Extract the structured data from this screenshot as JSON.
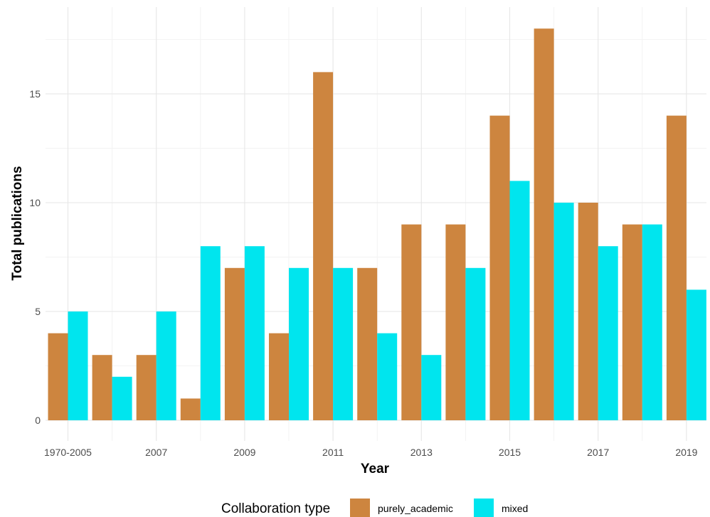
{
  "chart_data": {
    "type": "bar",
    "xlabel": "Year",
    "ylabel": "Total publications",
    "categories": [
      "1970-2005",
      "2006",
      "2007",
      "2008",
      "2009",
      "2010",
      "2011",
      "2012",
      "2013",
      "2014",
      "2015",
      "2016",
      "2017",
      "2018",
      "2019"
    ],
    "x_tick_labels": [
      "1970-2005",
      "2007",
      "2009",
      "2011",
      "2013",
      "2015",
      "2017",
      "2019"
    ],
    "y_ticks": [
      0,
      5,
      10,
      15
    ],
    "ylim": [
      0,
      19
    ],
    "grid": true,
    "series": [
      {
        "name": "purely_academic",
        "color": "#CD853F",
        "values": [
          4,
          3,
          3,
          1,
          7,
          4,
          16,
          7,
          9,
          9,
          14,
          18,
          10,
          9,
          14
        ]
      },
      {
        "name": "mixed",
        "color": "#00E5EE",
        "values": [
          5,
          2,
          5,
          8,
          8,
          7,
          7,
          4,
          3,
          7,
          11,
          10,
          8,
          9,
          6
        ]
      }
    ],
    "legend": {
      "title": "Collaboration type",
      "position": "bottom"
    }
  }
}
